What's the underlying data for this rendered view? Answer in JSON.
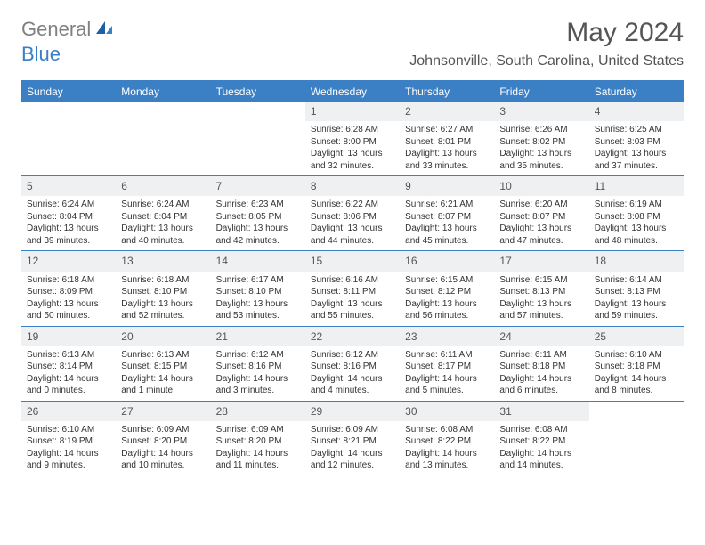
{
  "logo": {
    "general": "General",
    "blue": "Blue"
  },
  "title": "May 2024",
  "location": "Johnsonville, South Carolina, United States",
  "weekdays": [
    "Sunday",
    "Monday",
    "Tuesday",
    "Wednesday",
    "Thursday",
    "Friday",
    "Saturday"
  ],
  "colors": {
    "header_bar": "#3b7fc4",
    "daynum_bg": "#eef0f2",
    "text": "#333333",
    "title_text": "#555555"
  },
  "weeks": [
    [
      {
        "empty": true
      },
      {
        "empty": true
      },
      {
        "empty": true
      },
      {
        "num": "1",
        "sunrise": "Sunrise: 6:28 AM",
        "sunset": "Sunset: 8:00 PM",
        "daylight": "Daylight: 13 hours and 32 minutes."
      },
      {
        "num": "2",
        "sunrise": "Sunrise: 6:27 AM",
        "sunset": "Sunset: 8:01 PM",
        "daylight": "Daylight: 13 hours and 33 minutes."
      },
      {
        "num": "3",
        "sunrise": "Sunrise: 6:26 AM",
        "sunset": "Sunset: 8:02 PM",
        "daylight": "Daylight: 13 hours and 35 minutes."
      },
      {
        "num": "4",
        "sunrise": "Sunrise: 6:25 AM",
        "sunset": "Sunset: 8:03 PM",
        "daylight": "Daylight: 13 hours and 37 minutes."
      }
    ],
    [
      {
        "num": "5",
        "sunrise": "Sunrise: 6:24 AM",
        "sunset": "Sunset: 8:04 PM",
        "daylight": "Daylight: 13 hours and 39 minutes."
      },
      {
        "num": "6",
        "sunrise": "Sunrise: 6:24 AM",
        "sunset": "Sunset: 8:04 PM",
        "daylight": "Daylight: 13 hours and 40 minutes."
      },
      {
        "num": "7",
        "sunrise": "Sunrise: 6:23 AM",
        "sunset": "Sunset: 8:05 PM",
        "daylight": "Daylight: 13 hours and 42 minutes."
      },
      {
        "num": "8",
        "sunrise": "Sunrise: 6:22 AM",
        "sunset": "Sunset: 8:06 PM",
        "daylight": "Daylight: 13 hours and 44 minutes."
      },
      {
        "num": "9",
        "sunrise": "Sunrise: 6:21 AM",
        "sunset": "Sunset: 8:07 PM",
        "daylight": "Daylight: 13 hours and 45 minutes."
      },
      {
        "num": "10",
        "sunrise": "Sunrise: 6:20 AM",
        "sunset": "Sunset: 8:07 PM",
        "daylight": "Daylight: 13 hours and 47 minutes."
      },
      {
        "num": "11",
        "sunrise": "Sunrise: 6:19 AM",
        "sunset": "Sunset: 8:08 PM",
        "daylight": "Daylight: 13 hours and 48 minutes."
      }
    ],
    [
      {
        "num": "12",
        "sunrise": "Sunrise: 6:18 AM",
        "sunset": "Sunset: 8:09 PM",
        "daylight": "Daylight: 13 hours and 50 minutes."
      },
      {
        "num": "13",
        "sunrise": "Sunrise: 6:18 AM",
        "sunset": "Sunset: 8:10 PM",
        "daylight": "Daylight: 13 hours and 52 minutes."
      },
      {
        "num": "14",
        "sunrise": "Sunrise: 6:17 AM",
        "sunset": "Sunset: 8:10 PM",
        "daylight": "Daylight: 13 hours and 53 minutes."
      },
      {
        "num": "15",
        "sunrise": "Sunrise: 6:16 AM",
        "sunset": "Sunset: 8:11 PM",
        "daylight": "Daylight: 13 hours and 55 minutes."
      },
      {
        "num": "16",
        "sunrise": "Sunrise: 6:15 AM",
        "sunset": "Sunset: 8:12 PM",
        "daylight": "Daylight: 13 hours and 56 minutes."
      },
      {
        "num": "17",
        "sunrise": "Sunrise: 6:15 AM",
        "sunset": "Sunset: 8:13 PM",
        "daylight": "Daylight: 13 hours and 57 minutes."
      },
      {
        "num": "18",
        "sunrise": "Sunrise: 6:14 AM",
        "sunset": "Sunset: 8:13 PM",
        "daylight": "Daylight: 13 hours and 59 minutes."
      }
    ],
    [
      {
        "num": "19",
        "sunrise": "Sunrise: 6:13 AM",
        "sunset": "Sunset: 8:14 PM",
        "daylight": "Daylight: 14 hours and 0 minutes."
      },
      {
        "num": "20",
        "sunrise": "Sunrise: 6:13 AM",
        "sunset": "Sunset: 8:15 PM",
        "daylight": "Daylight: 14 hours and 1 minute."
      },
      {
        "num": "21",
        "sunrise": "Sunrise: 6:12 AM",
        "sunset": "Sunset: 8:16 PM",
        "daylight": "Daylight: 14 hours and 3 minutes."
      },
      {
        "num": "22",
        "sunrise": "Sunrise: 6:12 AM",
        "sunset": "Sunset: 8:16 PM",
        "daylight": "Daylight: 14 hours and 4 minutes."
      },
      {
        "num": "23",
        "sunrise": "Sunrise: 6:11 AM",
        "sunset": "Sunset: 8:17 PM",
        "daylight": "Daylight: 14 hours and 5 minutes."
      },
      {
        "num": "24",
        "sunrise": "Sunrise: 6:11 AM",
        "sunset": "Sunset: 8:18 PM",
        "daylight": "Daylight: 14 hours and 6 minutes."
      },
      {
        "num": "25",
        "sunrise": "Sunrise: 6:10 AM",
        "sunset": "Sunset: 8:18 PM",
        "daylight": "Daylight: 14 hours and 8 minutes."
      }
    ],
    [
      {
        "num": "26",
        "sunrise": "Sunrise: 6:10 AM",
        "sunset": "Sunset: 8:19 PM",
        "daylight": "Daylight: 14 hours and 9 minutes."
      },
      {
        "num": "27",
        "sunrise": "Sunrise: 6:09 AM",
        "sunset": "Sunset: 8:20 PM",
        "daylight": "Daylight: 14 hours and 10 minutes."
      },
      {
        "num": "28",
        "sunrise": "Sunrise: 6:09 AM",
        "sunset": "Sunset: 8:20 PM",
        "daylight": "Daylight: 14 hours and 11 minutes."
      },
      {
        "num": "29",
        "sunrise": "Sunrise: 6:09 AM",
        "sunset": "Sunset: 8:21 PM",
        "daylight": "Daylight: 14 hours and 12 minutes."
      },
      {
        "num": "30",
        "sunrise": "Sunrise: 6:08 AM",
        "sunset": "Sunset: 8:22 PM",
        "daylight": "Daylight: 14 hours and 13 minutes."
      },
      {
        "num": "31",
        "sunrise": "Sunrise: 6:08 AM",
        "sunset": "Sunset: 8:22 PM",
        "daylight": "Daylight: 14 hours and 14 minutes."
      },
      {
        "empty": true
      }
    ]
  ]
}
